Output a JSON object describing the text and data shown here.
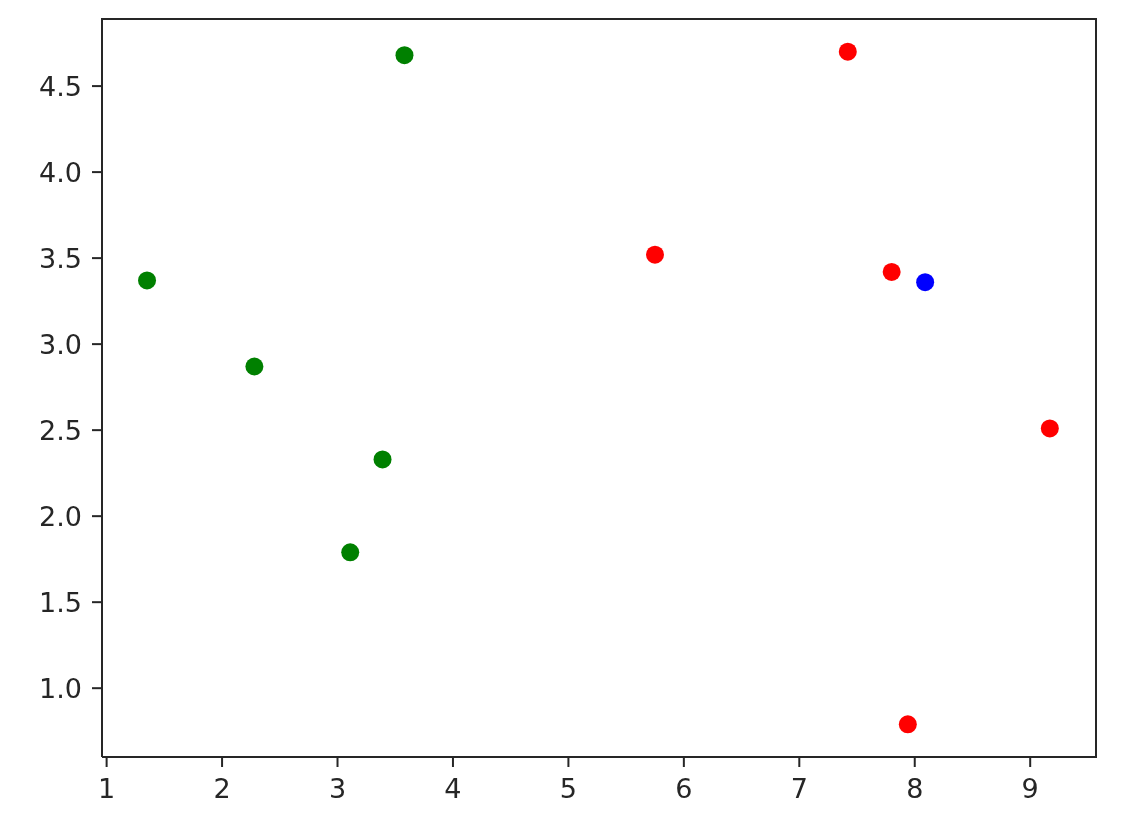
{
  "chart_data": {
    "type": "scatter",
    "marker": "circle",
    "series": [
      {
        "color": "#008000",
        "x": [
          1.35,
          2.28,
          3.58,
          3.39,
          3.11
        ],
        "values": [
          3.37,
          2.87,
          4.68,
          2.33,
          1.79
        ]
      },
      {
        "color": "#ff0000",
        "x": [
          7.42,
          5.75,
          7.8,
          9.17,
          7.94
        ],
        "values": [
          4.7,
          3.52,
          3.42,
          2.51,
          0.79
        ]
      },
      {
        "color": "#0000ff",
        "x": [
          8.09
        ],
        "values": [
          3.36
        ]
      }
    ],
    "xlim": [
      0.96,
      9.57
    ],
    "ylim": [
      0.6,
      4.89
    ],
    "xticks": [
      1,
      2,
      3,
      4,
      5,
      6,
      7,
      8,
      9
    ],
    "yticks": [
      {
        "value": 1,
        "label": "1.0"
      },
      {
        "value": 1.5,
        "label": "1.5"
      },
      {
        "value": 2,
        "label": "2.0"
      },
      {
        "value": 2.5,
        "label": "2.5"
      },
      {
        "value": 3,
        "label": "3.0"
      },
      {
        "value": 3.5,
        "label": "3.5"
      },
      {
        "value": 4,
        "label": "4.0"
      },
      {
        "value": 4.5,
        "label": "4.5"
      }
    ]
  }
}
